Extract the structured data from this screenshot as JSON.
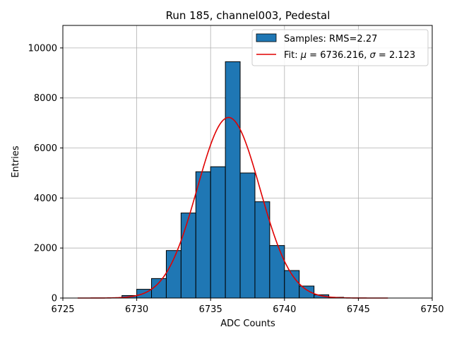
{
  "chart_data": {
    "type": "bar",
    "title": "Run 185, channel003, Pedestal",
    "xlabel": "ADC Counts",
    "ylabel": "Entries",
    "xlim": [
      6725,
      6750
    ],
    "ylim": [
      0,
      10900
    ],
    "xticks": [
      6725,
      6730,
      6735,
      6740,
      6745,
      6750
    ],
    "yticks": [
      0,
      2000,
      4000,
      6000,
      8000,
      10000
    ],
    "grid": true,
    "legend_position": "top-right",
    "bin_width": 1,
    "bins": [
      {
        "x0": 6729,
        "count": 100
      },
      {
        "x0": 6730,
        "count": 350
      },
      {
        "x0": 6731,
        "count": 780
      },
      {
        "x0": 6732,
        "count": 1900
      },
      {
        "x0": 6733,
        "count": 3400
      },
      {
        "x0": 6734,
        "count": 5050
      },
      {
        "x0": 6735,
        "count": 5250
      },
      {
        "x0": 6736,
        "count": 9450
      },
      {
        "x0": 6737,
        "count": 5000
      },
      {
        "x0": 6738,
        "count": 3850
      },
      {
        "x0": 6739,
        "count": 2100
      },
      {
        "x0": 6740,
        "count": 1100
      },
      {
        "x0": 6741,
        "count": 480
      },
      {
        "x0": 6742,
        "count": 130
      },
      {
        "x0": 6743,
        "count": 30
      }
    ],
    "fit": {
      "mu": 6736.216,
      "sigma": 2.123,
      "amplitude": 7220,
      "x_range": [
        6726,
        6747
      ]
    },
    "series": [
      {
        "name": "Samples: RMS=2.27",
        "color": "#1f77b4"
      },
      {
        "name_prefix": "Fit: ",
        "mu_text": "6736.216",
        "sigma_text": "2.123",
        "color": "#e00000"
      }
    ]
  }
}
